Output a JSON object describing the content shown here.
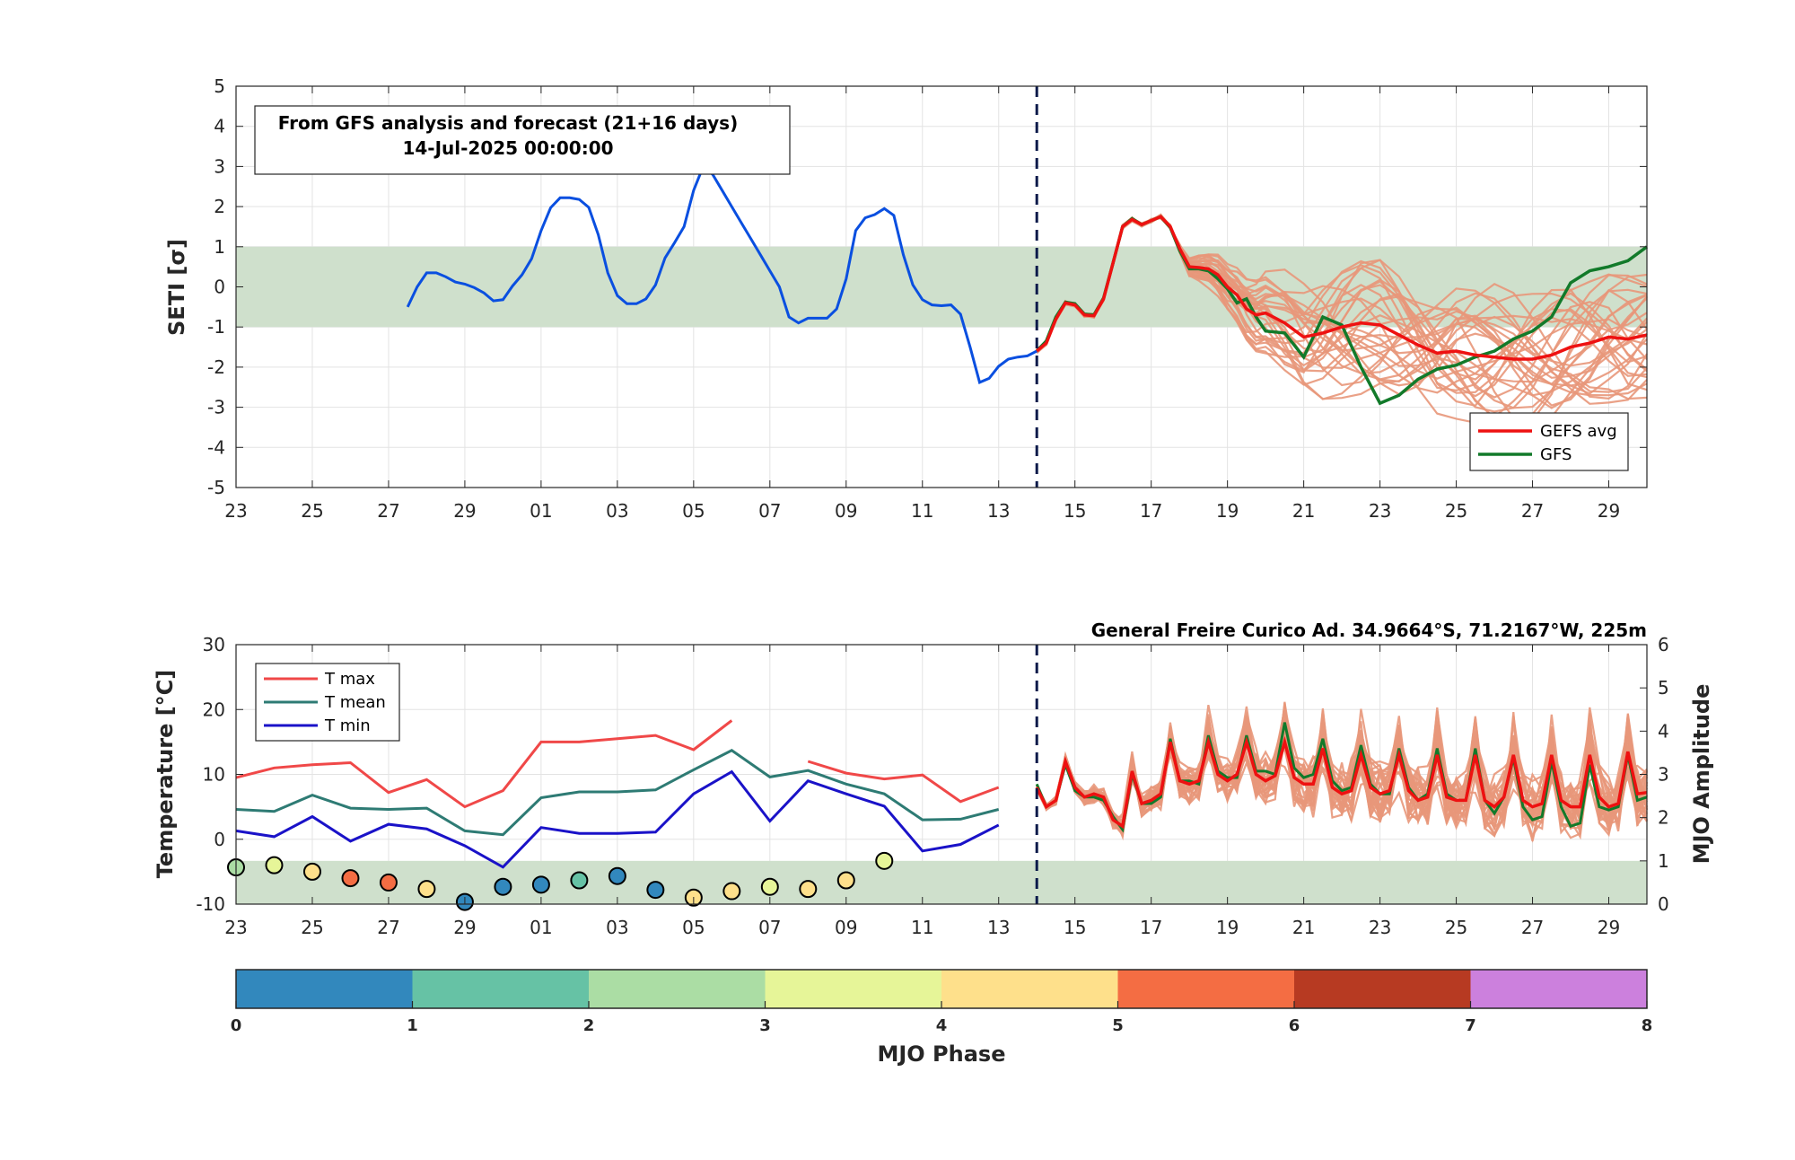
{
  "chart_data": [
    {
      "type": "line",
      "ylabel": "SETI [σ]",
      "ylim": [
        -5,
        5
      ],
      "yticks": [
        -5,
        -4,
        -3,
        -2,
        -1,
        0,
        1,
        2,
        3,
        4,
        5
      ],
      "xticks": [
        "23",
        "25",
        "27",
        "29",
        "01",
        "03",
        "05",
        "07",
        "09",
        "11",
        "13",
        "15",
        "17",
        "19",
        "21",
        "23",
        "25",
        "27",
        "29"
      ],
      "x_range_days": [
        0,
        37
      ],
      "forecast_start_day": 21,
      "normal_band": [
        -1,
        1
      ],
      "annotation": {
        "line1": "From GFS analysis and forecast (21+16 days)",
        "line2": "14-Jul-2025 00:00:00"
      },
      "legend": {
        "placement": "bottom-right",
        "avg_label": "GEFS avg",
        "gfs_label": "GFS"
      },
      "colors": {
        "analysis": "#0a4fe0",
        "gefs_avg": "#ee1111",
        "gfs": "#127a2a",
        "members": "#e8977a",
        "band": "#cfe0cc",
        "divider": "#0b1a4a"
      },
      "analysis": {
        "x": [
          4.5,
          4.75,
          5,
          5.25,
          5.5,
          5.75,
          6,
          6.25,
          6.5,
          6.75,
          7,
          7.25,
          7.5,
          7.75,
          8,
          8.25,
          8.5,
          8.75,
          9,
          9.25,
          9.5,
          9.75,
          10,
          10.25,
          10.5,
          10.75,
          11,
          11.25,
          11.5,
          11.75,
          12,
          12.25,
          12.5,
          12.75,
          13,
          13.25,
          13.5,
          13.75,
          14,
          14.25,
          14.5,
          14.75,
          15,
          15.25,
          15.5,
          15.75,
          16,
          16.25,
          16.5,
          16.75,
          17,
          17.25,
          17.5,
          17.75,
          18,
          18.25,
          18.5,
          18.75,
          19,
          19.25,
          19.5,
          19.75,
          20,
          20.25,
          20.5,
          20.75,
          21
        ],
        "y": [
          -0.5,
          0,
          0.35,
          0.35,
          0.25,
          0.12,
          0.07,
          -0.02,
          -0.15,
          -0.35,
          -0.32,
          0.02,
          0.3,
          0.7,
          1.4,
          1.97,
          2.22,
          2.22,
          2.18,
          1.98,
          1.3,
          0.35,
          -0.22,
          -0.42,
          -0.42,
          -0.3,
          0.05,
          0.72,
          1.1,
          1.5,
          2.4,
          3.0,
          2.8,
          2.4,
          2.0,
          1.6,
          1.2,
          0.8,
          0.4,
          0.0,
          -0.75,
          -0.9,
          -0.78,
          -0.78,
          -0.78,
          -0.55,
          0.2,
          1.4,
          1.72,
          1.8,
          1.95,
          1.78,
          0.8,
          0.05,
          -0.32,
          -0.45,
          -0.47,
          -0.45,
          -0.68,
          -1.5,
          -2.38,
          -2.28,
          -1.98,
          -1.8,
          -1.75,
          -1.72,
          -1.6
        ]
      },
      "gefs_avg": {
        "x": [
          21,
          21.25,
          21.5,
          21.75,
          22,
          22.25,
          22.5,
          22.75,
          23,
          23.25,
          23.5,
          23.75,
          24,
          24.25,
          24.5,
          24.75,
          25,
          25.25,
          25.5,
          25.75,
          26,
          26.25,
          26.5,
          26.75,
          27,
          27.5,
          28,
          28.5,
          29,
          29.5,
          30,
          30.5,
          31,
          31.5,
          32,
          32.5,
          33,
          33.5,
          34,
          34.5,
          35,
          35.5,
          36,
          36.5,
          37
        ],
        "y": [
          -1.6,
          -1.4,
          -0.8,
          -0.4,
          -0.45,
          -0.7,
          -0.72,
          -0.3,
          0.6,
          1.5,
          1.68,
          1.55,
          1.65,
          1.75,
          1.5,
          0.95,
          0.5,
          0.48,
          0.45,
          0.3,
          0.0,
          -0.2,
          -0.55,
          -0.7,
          -0.65,
          -0.9,
          -1.25,
          -1.15,
          -1.0,
          -0.9,
          -0.95,
          -1.2,
          -1.45,
          -1.65,
          -1.6,
          -1.7,
          -1.75,
          -1.8,
          -1.8,
          -1.7,
          -1.5,
          -1.4,
          -1.25,
          -1.3,
          -1.2
        ]
      },
      "gfs": {
        "x": [
          21,
          21.25,
          21.5,
          21.75,
          22,
          22.25,
          22.5,
          22.75,
          23,
          23.25,
          23.5,
          23.75,
          24,
          24.25,
          24.5,
          24.75,
          25,
          25.25,
          25.5,
          25.75,
          26,
          26.25,
          26.5,
          26.75,
          27,
          27.5,
          28,
          28.5,
          29,
          29.5,
          30,
          30.5,
          31,
          31.5,
          32,
          32.5,
          33,
          33.5,
          34,
          34.5,
          35,
          35.5,
          36,
          36.5,
          37
        ],
        "y": [
          -1.6,
          -1.35,
          -0.75,
          -0.38,
          -0.42,
          -0.68,
          -0.7,
          -0.28,
          0.6,
          1.5,
          1.7,
          1.55,
          1.65,
          1.75,
          1.48,
          0.9,
          0.45,
          0.45,
          0.4,
          0.2,
          -0.05,
          -0.4,
          -0.3,
          -0.75,
          -1.1,
          -1.15,
          -1.75,
          -0.75,
          -0.95,
          -2.0,
          -2.9,
          -2.7,
          -2.3,
          -2.05,
          -1.95,
          -1.75,
          -1.6,
          -1.3,
          -1.1,
          -0.75,
          0.1,
          0.4,
          0.5,
          0.65,
          1.0
        ]
      }
    },
    {
      "type": "line",
      "title": "General Freire Curico Ad. 34.9664°S, 71.2167°W, 225m",
      "ylabel": "Temperature [°C]",
      "y2label": "MJO Amplitude",
      "xlabel": "MJO Phase",
      "ylim": [
        -10,
        30
      ],
      "y2lim": [
        0,
        6
      ],
      "yticks": [
        -10,
        0,
        10,
        20,
        30
      ],
      "y2ticks": [
        0,
        1,
        2,
        3,
        4,
        5,
        6
      ],
      "xticks": [
        "23",
        "25",
        "27",
        "29",
        "01",
        "03",
        "05",
        "07",
        "09",
        "11",
        "13",
        "15",
        "17",
        "19",
        "21",
        "23",
        "25",
        "27",
        "29"
      ],
      "x_range_days": [
        0,
        37
      ],
      "forecast_start_day": 21,
      "mjo_band_amplitude": [
        0,
        1
      ],
      "legend": {
        "placement": "top-left",
        "tmax_label": "T max",
        "tmean_label": "T mean",
        "tmin_label": "T min"
      },
      "colors": {
        "tmax": "#f04848",
        "tmean": "#2e7b74",
        "tmin": "#1a12c8",
        "gefs_avg": "#ee1111",
        "gfs": "#127a2a",
        "members": "#e8977a"
      },
      "days": [
        0,
        1,
        2,
        3,
        4,
        5,
        6,
        7,
        8,
        9,
        10,
        11,
        12,
        13,
        14,
        15,
        16,
        17,
        18,
        19,
        20
      ],
      "tmax": [
        9.5,
        11,
        11.5,
        11.8,
        7.2,
        9.2,
        5,
        7.5,
        15,
        15,
        15.5,
        16,
        13.8,
        18.3,
        null,
        12,
        10.2,
        9.3,
        9.9,
        5.8,
        8
      ],
      "tmean": [
        4.6,
        4.3,
        6.8,
        4.8,
        4.6,
        4.8,
        1.3,
        0.7,
        6.4,
        7.3,
        7.3,
        7.6,
        10.7,
        13.7,
        9.6,
        10.6,
        8.5,
        7,
        3,
        3.1,
        4.6
      ],
      "tmin": [
        1.3,
        0.4,
        3.5,
        -0.3,
        2.3,
        1.6,
        -1,
        -4.3,
        1.8,
        0.9,
        0.9,
        1.1,
        7,
        10.4,
        2.8,
        9,
        7,
        5.1,
        -1.8,
        -0.8,
        2.2
      ],
      "mjo_days": [
        0,
        1,
        2,
        3,
        4,
        5,
        6,
        7,
        8,
        9,
        10,
        11,
        12,
        13,
        14,
        15,
        16,
        17
      ],
      "mjo_amplitude": [
        0.85,
        0.9,
        0.75,
        0.6,
        0.5,
        0.35,
        0.05,
        0.4,
        0.45,
        0.55,
        0.65,
        0.33,
        0.15,
        0.3,
        0.4,
        0.35,
        0.55,
        1.0
      ],
      "mjo_phase": [
        2.5,
        3.5,
        4.5,
        5.5,
        5.5,
        4.5,
        0.5,
        0.5,
        0.5,
        1.5,
        0.5,
        0.5,
        4.5,
        4.5,
        3.5,
        4.5,
        4.5,
        3.5
      ],
      "forecast_days": [
        21,
        21.25,
        21.5,
        21.75,
        22,
        22.25,
        22.5,
        22.75,
        23,
        23.25,
        23.5,
        23.75,
        24,
        24.25,
        24.5,
        24.75,
        25,
        25.25,
        25.5,
        25.75,
        26,
        26.25,
        26.5,
        26.75,
        27,
        27.25,
        27.5,
        27.75,
        28,
        28.25,
        28.5,
        28.75,
        29,
        29.25,
        29.5,
        29.75,
        30,
        30.25,
        30.5,
        30.75,
        31,
        31.25,
        31.5,
        31.75,
        32,
        32.25,
        32.5,
        32.75,
        33,
        33.25,
        33.5,
        33.75,
        34,
        34.25,
        34.5,
        34.75,
        35,
        35.25,
        35.5,
        35.75,
        36,
        36.25,
        36.5,
        36.75,
        37
      ],
      "gefs_avg_temp": [
        8,
        5,
        6,
        12,
        8,
        6.5,
        7,
        6.5,
        3,
        2,
        10.5,
        5.5,
        6,
        7,
        15,
        9,
        8.5,
        9,
        15,
        10,
        9,
        10,
        15,
        10,
        9,
        9.8,
        15,
        9.5,
        8.5,
        8.5,
        14,
        8,
        7,
        7.5,
        13,
        8,
        7,
        7.5,
        13,
        7.5,
        6,
        6.5,
        13,
        6.5,
        6,
        6,
        13,
        6,
        5,
        6.5,
        13,
        6,
        5,
        5.5,
        13,
        6,
        5,
        5,
        13,
        6.5,
        5,
        5.5,
        13.5,
        7,
        7.2
      ],
      "gfs_temp": [
        8.5,
        5,
        6,
        11.5,
        7.5,
        6.5,
        6.5,
        6,
        3.5,
        1.5,
        10,
        5.5,
        5.5,
        6.5,
        15.5,
        9,
        9,
        8.5,
        16,
        10.5,
        9.5,
        9.5,
        16,
        10.5,
        10.5,
        10,
        18,
        11,
        9.5,
        10,
        15.5,
        9,
        7.5,
        8,
        14.5,
        8.5,
        7,
        7,
        14,
        8,
        6,
        7,
        14,
        7,
        6,
        6,
        14,
        6,
        4,
        6.5,
        12.5,
        5,
        3,
        3.5,
        12,
        5,
        2,
        2.5,
        11.5,
        5,
        4.5,
        5,
        13,
        6,
        6.5
      ]
    },
    {
      "type": "colorbar",
      "xlabel": "MJO Phase",
      "ticks": [
        "0",
        "1",
        "2",
        "3",
        "4",
        "5",
        "6",
        "7",
        "8"
      ],
      "phase_colors": [
        "#3288bd",
        "#66c2a5",
        "#abdda4",
        "#e6f598",
        "#fee08b",
        "#f46d43",
        "#b73a22",
        "#cc80dd"
      ]
    }
  ]
}
